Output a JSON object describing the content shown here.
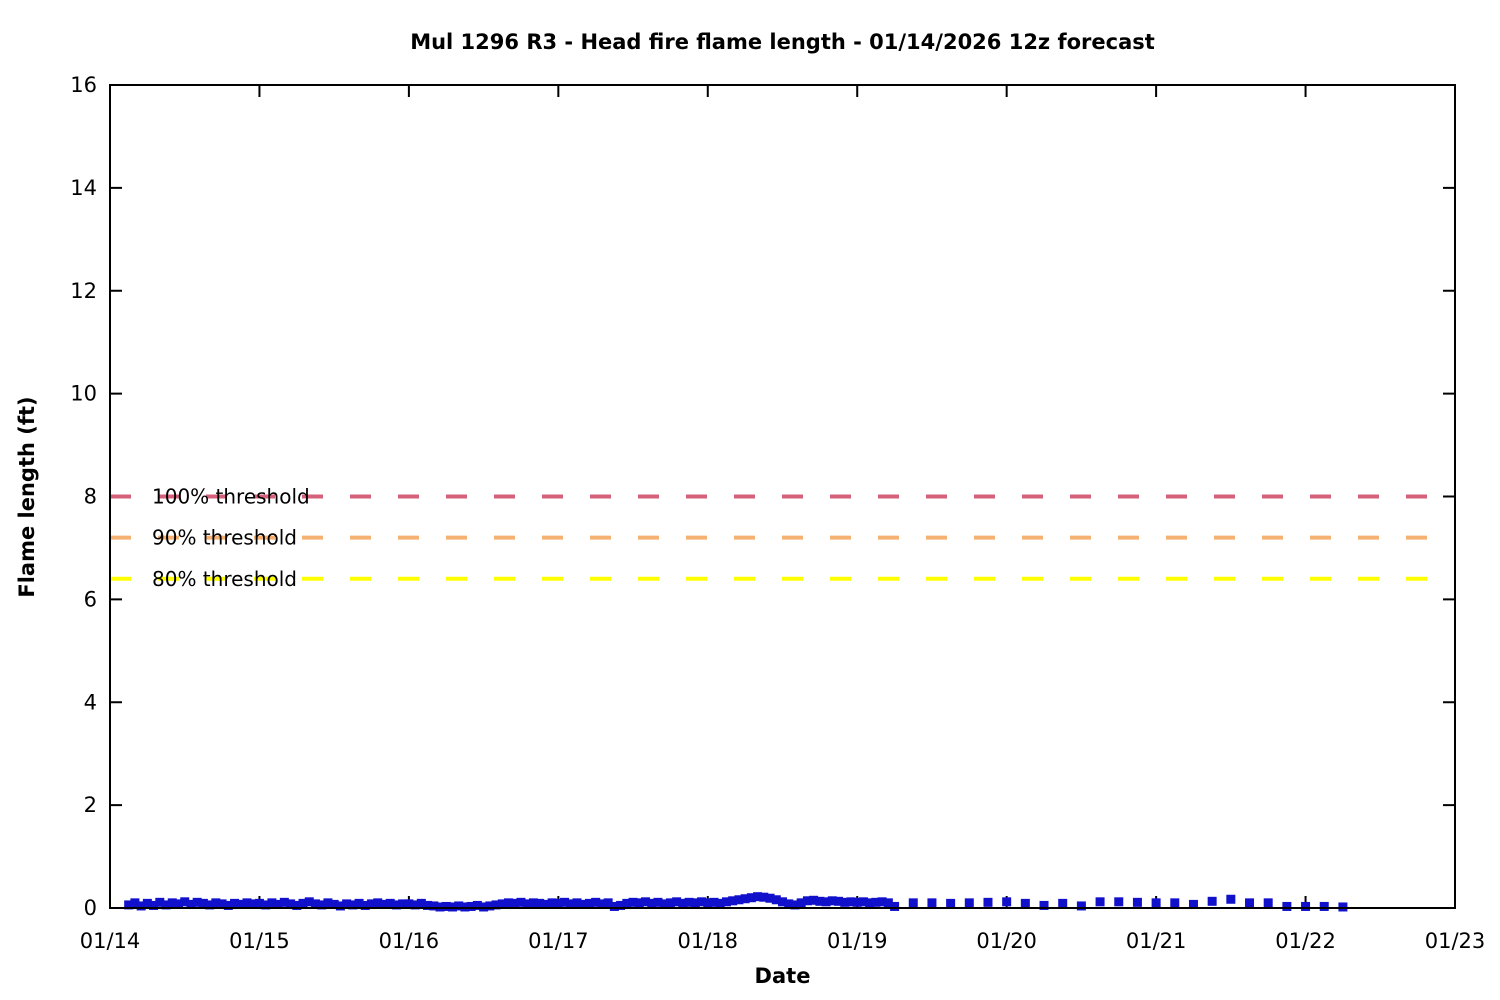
{
  "chart_data": {
    "type": "scatter",
    "title": "Mul 1296 R3 - Head fire flame length - 01/14/2026 12z forecast",
    "xlabel": "Date",
    "ylabel": "Flame length (ft)",
    "grid": false,
    "legend_position": "inline-labels-on-lines",
    "x_axis": {
      "tick_labels": [
        "01/14",
        "01/15",
        "01/16",
        "01/17",
        "01/18",
        "01/19",
        "01/20",
        "01/21",
        "01/22",
        "01/23"
      ],
      "range_days": [
        0,
        9
      ],
      "start_date": "01/14"
    },
    "y_axis": {
      "ticks": [
        0,
        2,
        4,
        6,
        8,
        10,
        12,
        14,
        16
      ],
      "range": [
        0,
        16
      ]
    },
    "thresholds": [
      {
        "label": "100% threshold",
        "value": 8,
        "color": "#d5607a"
      },
      {
        "label": "90% threshold",
        "value": 7.2,
        "color": "#f5b171"
      },
      {
        "label": "80% threshold",
        "value": 6.4,
        "color": "#ffff00"
      }
    ],
    "series": [
      {
        "name": "head-fire-flame-length-hourly",
        "color": "#1111cc",
        "marker": "square",
        "start_hour": 3,
        "step_hours": 1,
        "values": [
          0.06,
          0.1,
          0.04,
          0.09,
          0.05,
          0.11,
          0.06,
          0.1,
          0.08,
          0.12,
          0.07,
          0.11,
          0.09,
          0.06,
          0.1,
          0.08,
          0.05,
          0.09,
          0.07,
          0.1,
          0.08,
          0.09,
          0.06,
          0.1,
          0.07,
          0.11,
          0.08,
          0.05,
          0.09,
          0.12,
          0.08,
          0.06,
          0.1,
          0.07,
          0.04,
          0.08,
          0.06,
          0.09,
          0.05,
          0.08,
          0.1,
          0.07,
          0.09,
          0.06,
          0.08,
          0.08,
          0.06,
          0.09,
          0.05,
          0.04,
          0.02,
          0.03,
          0.02,
          0.04,
          0.02,
          0.03,
          0.05,
          0.02,
          0.04,
          0.06,
          0.08,
          0.1,
          0.09,
          0.11,
          0.08,
          0.1,
          0.09,
          0.07,
          0.1,
          0.09,
          0.11,
          0.08,
          0.1,
          0.07,
          0.09,
          0.11,
          0.08,
          0.1,
          0.03,
          0.05,
          0.09,
          0.11,
          0.1,
          0.12,
          0.09,
          0.11,
          0.08,
          0.1,
          0.12,
          0.09,
          0.11,
          0.1,
          0.12,
          0.1,
          0.11,
          0.09,
          0.12,
          0.14,
          0.16,
          0.18,
          0.2,
          0.22,
          0.21,
          0.19,
          0.16,
          0.12,
          0.08,
          0.06,
          0.1,
          0.14,
          0.15,
          0.13,
          0.12,
          0.14,
          0.13,
          0.11,
          0.12,
          0.11,
          0.12,
          0.1,
          0.11,
          0.12,
          0.1
        ]
      },
      {
        "name": "head-fire-flame-length-3hourly",
        "color": "#1111cc",
        "marker": "square",
        "start_hour": 126,
        "step_hours": 3,
        "values": [
          0.03,
          0.1,
          0.1,
          0.09,
          0.1,
          0.11,
          0.12,
          0.09,
          0.05,
          0.09,
          0.04,
          0.12,
          0.12,
          0.11,
          0.1,
          0.1,
          0.07,
          0.13,
          0.17,
          0.1,
          0.1,
          0.03,
          0.03,
          0.03,
          0.02
        ]
      }
    ]
  }
}
